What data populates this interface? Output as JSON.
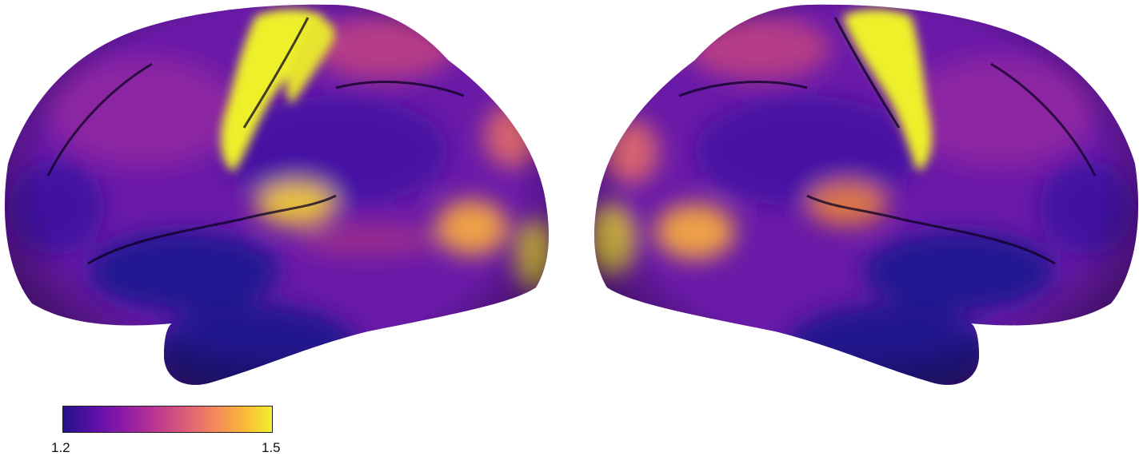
{
  "colorbar": {
    "min_label": "1.2",
    "max_label": "1.5",
    "colormap": "plasma",
    "colors": [
      "#23138b",
      "#5a0ea6",
      "#8a1aa6",
      "#b83393",
      "#d9597a",
      "#f2845e",
      "#fbb33c",
      "#f3ef2a"
    ]
  },
  "hemispheres": [
    "left-lateral",
    "right-lateral"
  ]
}
